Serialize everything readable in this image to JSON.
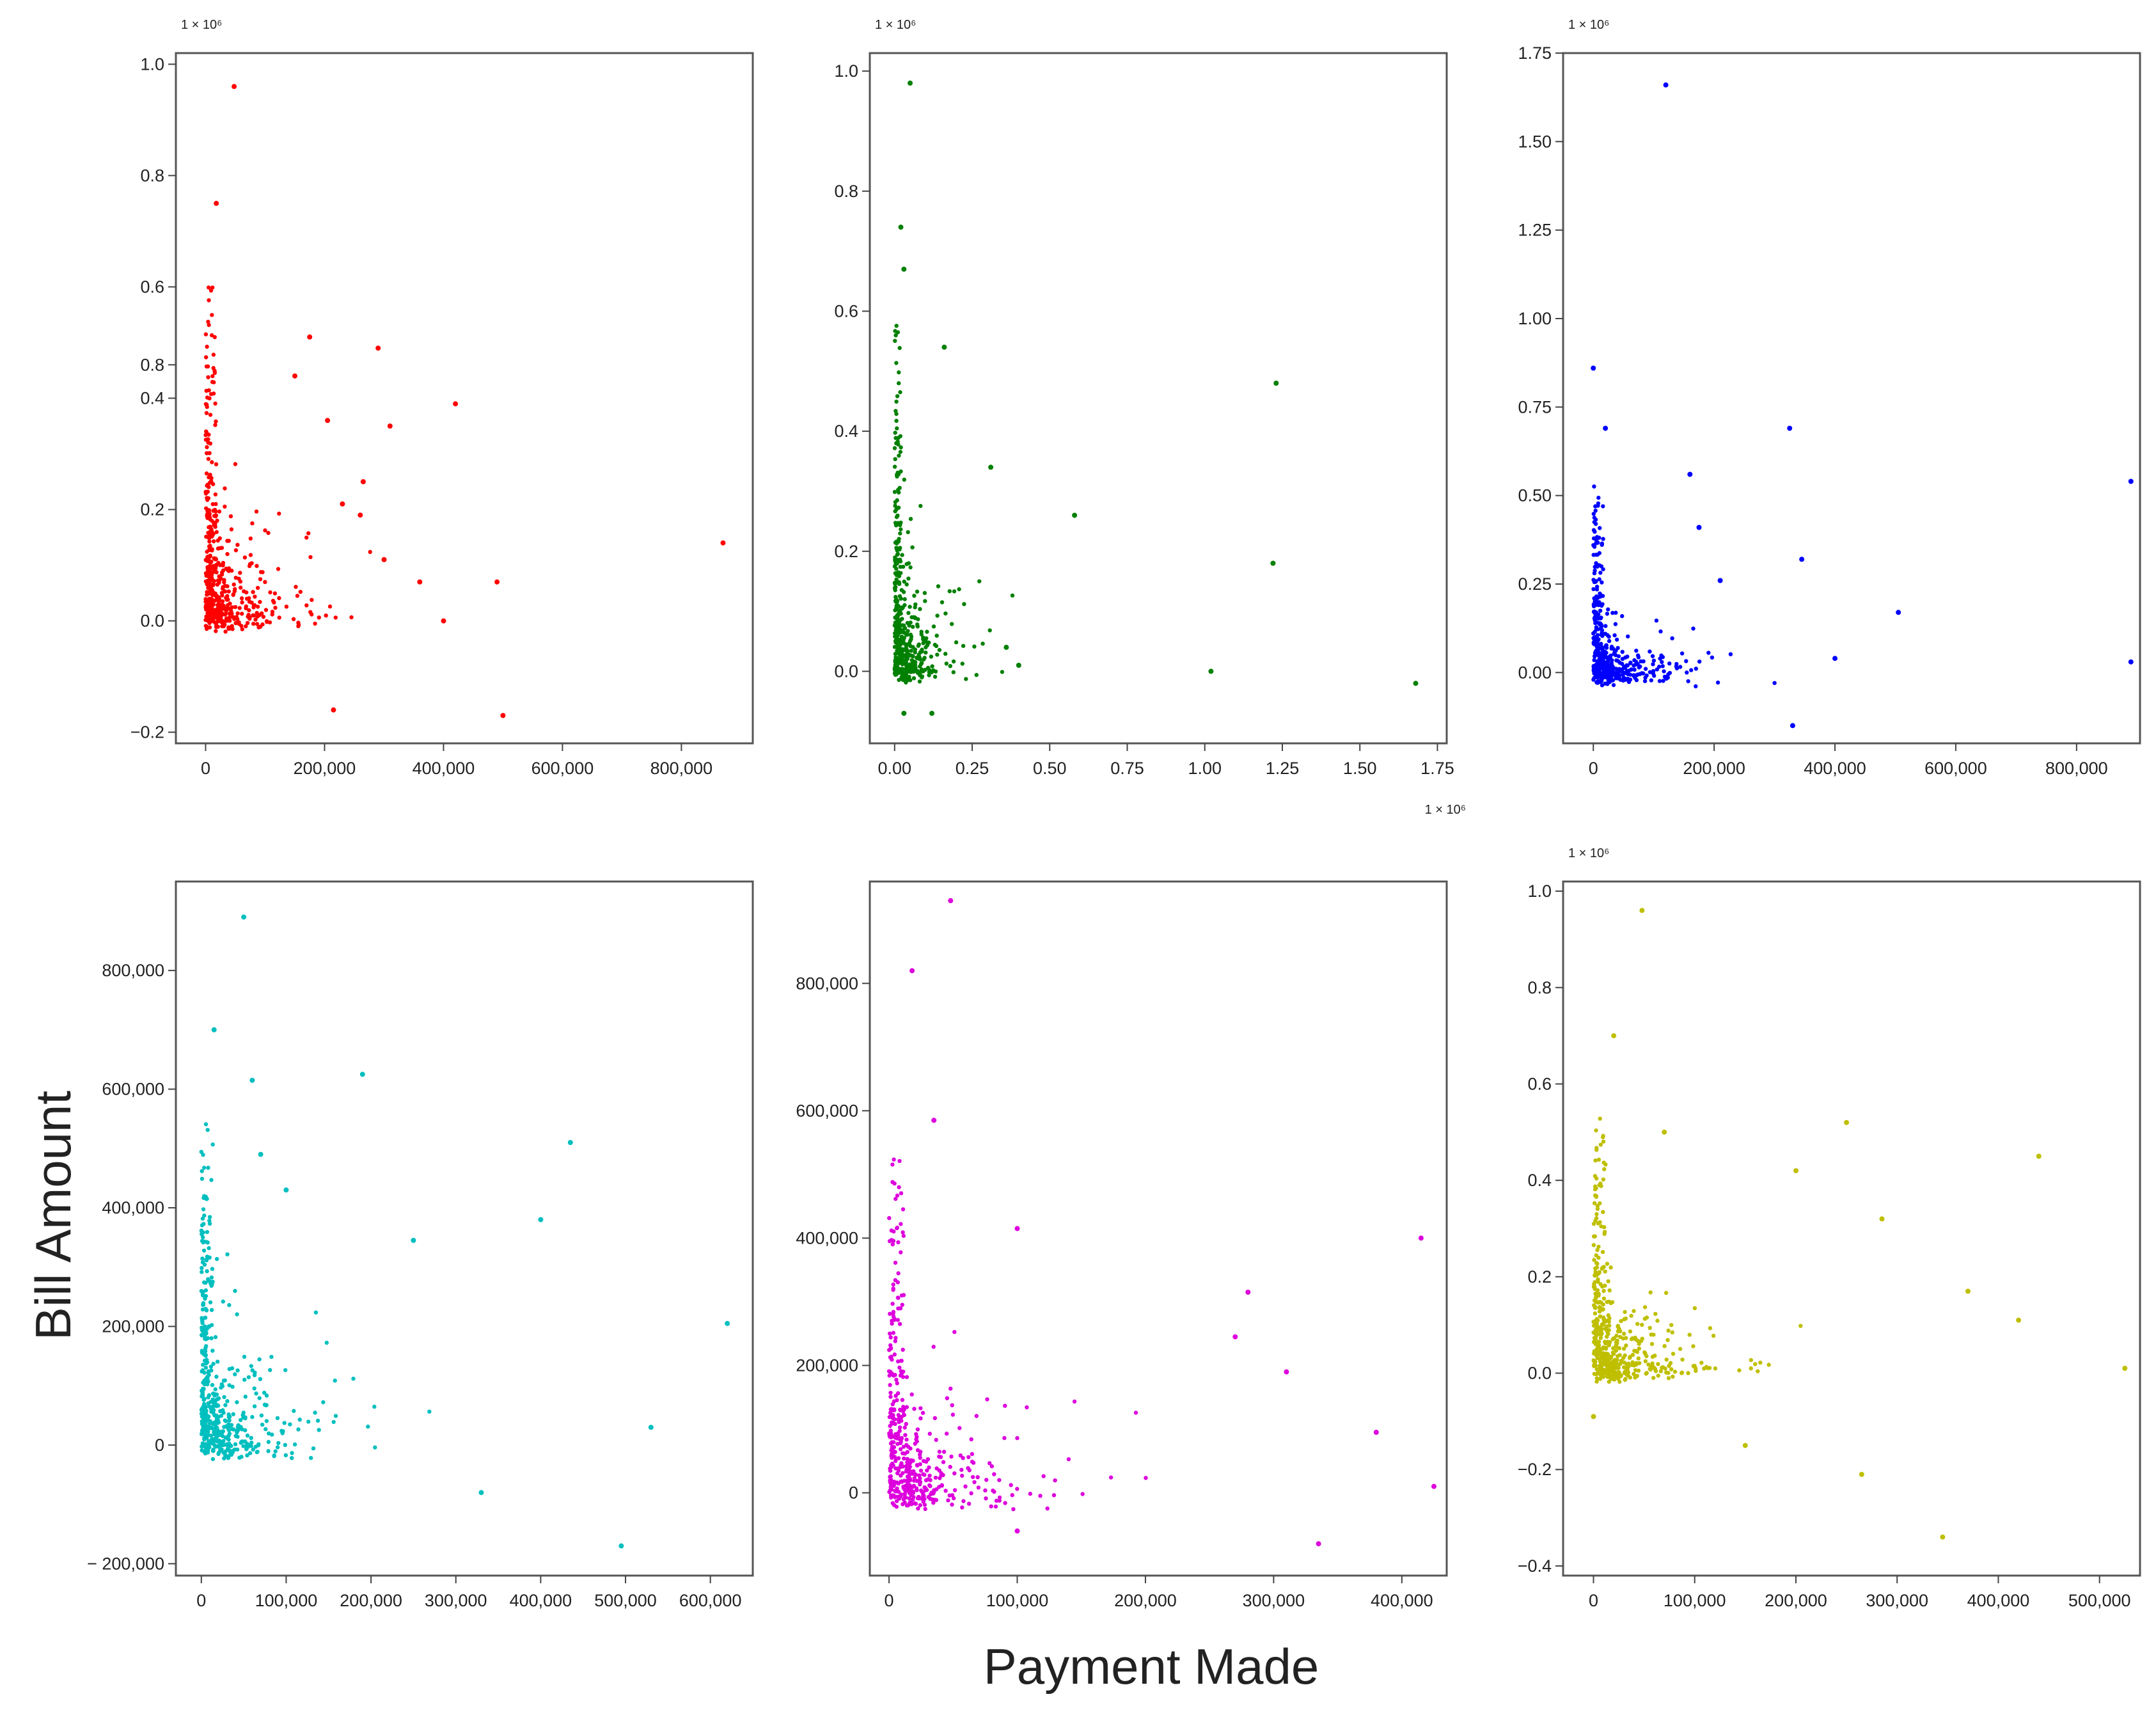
{
  "figure": {
    "ylabel": "Bill Amount",
    "xlabel": "Payment Made"
  },
  "chart_data": [
    {
      "type": "scatter",
      "color": "#ff0000",
      "xlim": [
        -50000,
        920000
      ],
      "ylim": [
        -0.22,
        1.02
      ],
      "x_ticks": [
        0,
        200000,
        400000,
        600000,
        800000
      ],
      "x_tick_labels": [
        "0",
        "200,000",
        "400,000",
        "600,000",
        "800,000"
      ],
      "y_ticks": [
        -0.2,
        0.0,
        0.2,
        0.4,
        0.6,
        0.8
      ],
      "y_tick_labels": [
        "−0.2",
        "0.0",
        "0.2",
        "0.4",
        "0.6",
        "0.8"
      ],
      "extra_y_ticks": [
        {
          "value": 0.46,
          "label": "0.8"
        },
        {
          "value": 1.0,
          "label": "1.0"
        }
      ],
      "y_offset_text": "1 × 10⁶",
      "x_offset_text": "",
      "points": [
        [
          48000,
          0.96
        ],
        [
          18000,
          0.75
        ],
        [
          175000,
          0.51
        ],
        [
          290000,
          0.49
        ],
        [
          150000,
          0.44
        ],
        [
          420000,
          0.39
        ],
        [
          205000,
          0.36
        ],
        [
          310000,
          0.35
        ],
        [
          870000,
          0.14
        ],
        [
          360000,
          0.07
        ],
        [
          490000,
          0.07
        ],
        [
          400000,
          0.0
        ],
        [
          215000,
          -0.16
        ],
        [
          500000,
          -0.17
        ],
        [
          265000,
          0.25
        ],
        [
          230000,
          0.21
        ],
        [
          260000,
          0.19
        ],
        [
          300000,
          0.11
        ]
      ],
      "bulk": {
        "n": 520,
        "seed": 7,
        "x_scale": 60000,
        "x_max": 300000,
        "y_scale": 0.09,
        "y_max": 0.62,
        "y_min": -0.02
      }
    },
    {
      "type": "scatter",
      "color": "#008000",
      "xlim": [
        -0.08,
        1.78
      ],
      "ylim": [
        -0.12,
        1.03
      ],
      "x_ticks": [
        0.0,
        0.25,
        0.5,
        0.75,
        1.0,
        1.25,
        1.5,
        1.75
      ],
      "x_tick_labels": [
        "0.00",
        "0.25",
        "0.50",
        "0.75",
        "1.00",
        "1.25",
        "1.50",
        "1.75"
      ],
      "y_ticks": [
        0.0,
        0.2,
        0.4,
        0.6,
        0.8,
        1.0
      ],
      "y_tick_labels": [
        "0.0",
        "0.2",
        "0.4",
        "0.6",
        "0.8",
        "1.0"
      ],
      "extra_y_ticks": [],
      "y_offset_text": "1 × 10⁶",
      "x_offset_text": "1 × 10⁶",
      "points": [
        [
          0.05,
          0.98
        ],
        [
          0.02,
          0.74
        ],
        [
          0.03,
          0.67
        ],
        [
          0.16,
          0.54
        ],
        [
          1.23,
          0.48
        ],
        [
          0.31,
          0.34
        ],
        [
          0.58,
          0.26
        ],
        [
          1.22,
          0.18
        ],
        [
          1.02,
          0.0
        ],
        [
          1.68,
          -0.02
        ],
        [
          0.03,
          -0.07
        ],
        [
          0.12,
          -0.07
        ],
        [
          0.4,
          0.01
        ],
        [
          0.36,
          0.04
        ]
      ],
      "bulk": {
        "n": 460,
        "seed": 11,
        "x_scale": 0.07,
        "x_max": 0.4,
        "y_scale": 0.08,
        "y_max": 0.6,
        "y_min": -0.02
      }
    },
    {
      "type": "scatter",
      "color": "#0000ff",
      "xlim": [
        -50000,
        905000
      ],
      "ylim": [
        -0.2,
        1.75
      ],
      "x_ticks": [
        0,
        200000,
        400000,
        600000,
        800000
      ],
      "x_tick_labels": [
        "0",
        "200,000",
        "400,000",
        "600,000",
        "800,000"
      ],
      "y_ticks": [
        0.0,
        0.25,
        0.5,
        0.75,
        1.0,
        1.25,
        1.5,
        1.75
      ],
      "y_tick_labels": [
        "0.00",
        "0.25",
        "0.50",
        "0.75",
        "1.00",
        "1.25",
        "1.50",
        "1.75"
      ],
      "extra_y_ticks": [],
      "y_offset_text": "1 × 10⁶",
      "x_offset_text": "",
      "points": [
        [
          120000,
          1.66
        ],
        [
          0,
          0.86
        ],
        [
          20000,
          0.69
        ],
        [
          325000,
          0.69
        ],
        [
          160000,
          0.56
        ],
        [
          890000,
          0.54
        ],
        [
          175000,
          0.41
        ],
        [
          345000,
          0.32
        ],
        [
          505000,
          0.17
        ],
        [
          890000,
          0.03
        ],
        [
          330000,
          -0.15
        ],
        [
          400000,
          0.04
        ],
        [
          210000,
          0.26
        ]
      ],
      "bulk": {
        "n": 500,
        "seed": 19,
        "x_scale": 55000,
        "x_max": 330000,
        "y_scale": 0.07,
        "y_max": 0.6,
        "y_min": -0.04
      }
    },
    {
      "type": "scatter",
      "color": "#00bfbf",
      "xlim": [
        -30000,
        650000
      ],
      "ylim": [
        -220000,
        950000
      ],
      "x_ticks": [
        0,
        100000,
        200000,
        300000,
        400000,
        500000,
        600000
      ],
      "x_tick_labels": [
        "0",
        "100,000",
        "200,000",
        "300,000",
        "400,000",
        "500,000",
        "600,000"
      ],
      "y_ticks": [
        -200000,
        0,
        200000,
        400000,
        600000,
        800000
      ],
      "y_tick_labels": [
        "− 200,000",
        "0",
        "200,000",
        "400,000",
        "600,000",
        "800,000"
      ],
      "extra_y_ticks": [],
      "y_offset_text": "",
      "x_offset_text": "",
      "points": [
        [
          50000,
          890000
        ],
        [
          15000,
          700000
        ],
        [
          190000,
          625000
        ],
        [
          60000,
          615000
        ],
        [
          435000,
          510000
        ],
        [
          400000,
          380000
        ],
        [
          250000,
          345000
        ],
        [
          620000,
          205000
        ],
        [
          530000,
          30000
        ],
        [
          495000,
          -170000
        ],
        [
          330000,
          -80000
        ],
        [
          70000,
          490000
        ],
        [
          100000,
          430000
        ]
      ],
      "bulk": {
        "n": 520,
        "seed": 23,
        "x_scale": 45000,
        "x_max": 330000,
        "y_scale": 90000,
        "y_max": 570000,
        "y_min": -25000
      }
    },
    {
      "type": "scatter",
      "color": "#dd00dd",
      "xlim": [
        -15000,
        435000
      ],
      "ylim": [
        -130000,
        960000
      ],
      "x_ticks": [
        0,
        100000,
        200000,
        300000,
        400000
      ],
      "x_tick_labels": [
        "0",
        "100,000",
        "200,000",
        "300,000",
        "400,000"
      ],
      "y_ticks": [
        0,
        200000,
        400000,
        600000,
        800000
      ],
      "y_tick_labels": [
        "0",
        "200,000",
        "400,000",
        "600,000",
        "800,000"
      ],
      "extra_y_ticks": [],
      "y_offset_text": "",
      "x_offset_text": "",
      "points": [
        [
          48000,
          930000
        ],
        [
          18000,
          820000
        ],
        [
          35000,
          585000
        ],
        [
          415000,
          400000
        ],
        [
          100000,
          415000
        ],
        [
          280000,
          315000
        ],
        [
          310000,
          190000
        ],
        [
          380000,
          95000
        ],
        [
          425000,
          10000
        ],
        [
          335000,
          -80000
        ],
        [
          100000,
          -60000
        ],
        [
          270000,
          245000
        ]
      ],
      "bulk": {
        "n": 480,
        "seed": 31,
        "x_scale": 40000,
        "x_max": 300000,
        "y_scale": 80000,
        "y_max": 540000,
        "y_min": -30000
      }
    },
    {
      "type": "scatter",
      "color": "#bfbf00",
      "xlim": [
        -30000,
        540000
      ],
      "ylim": [
        -0.42,
        1.02
      ],
      "x_ticks": [
        0,
        100000,
        200000,
        300000,
        400000,
        500000
      ],
      "x_tick_labels": [
        "0",
        "100,000",
        "200,000",
        "300,000",
        "400,000",
        "500,000"
      ],
      "y_ticks": [
        -0.4,
        -0.2,
        0.0,
        0.2,
        0.4,
        0.6,
        0.8,
        1.0
      ],
      "y_tick_labels": [
        "−0.4",
        "−0.2",
        "0.0",
        "0.2",
        "0.4",
        "0.6",
        "0.8",
        "1.0"
      ],
      "extra_y_ticks": [],
      "y_offset_text": "1 × 10⁶",
      "x_offset_text": "",
      "points": [
        [
          48000,
          0.96
        ],
        [
          20000,
          0.7
        ],
        [
          70000,
          0.5
        ],
        [
          250000,
          0.52
        ],
        [
          440000,
          0.45
        ],
        [
          285000,
          0.32
        ],
        [
          420000,
          0.11
        ],
        [
          370000,
          0.17
        ],
        [
          525000,
          0.01
        ],
        [
          345000,
          -0.34
        ],
        [
          265000,
          -0.21
        ],
        [
          150000,
          -0.15
        ],
        [
          0,
          -0.09
        ],
        [
          200000,
          0.42
        ]
      ],
      "bulk": {
        "n": 500,
        "seed": 43,
        "x_scale": 40000,
        "x_max": 230000,
        "y_scale": 0.08,
        "y_max": 0.56,
        "y_min": -0.02
      }
    }
  ]
}
